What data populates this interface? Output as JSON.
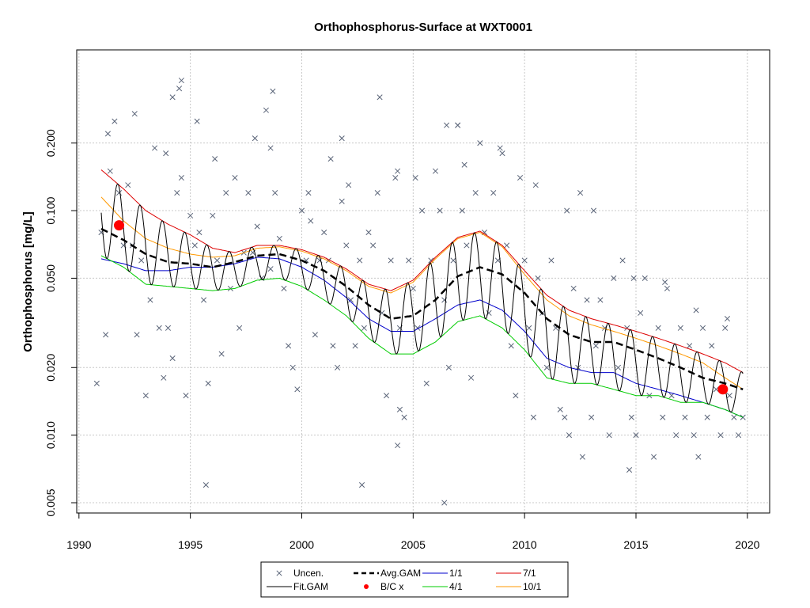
{
  "chart_data": {
    "type": "line",
    "title": "Orthophosphorus-Surface at WXT0001",
    "xlabel": "",
    "ylabel": "Orthophosphorus [mg/L]",
    "x_scale": "linear",
    "y_scale": "log",
    "xlim": [
      1989.9,
      2021.0
    ],
    "ylim": [
      0.0045,
      0.52
    ],
    "x_ticks": [
      1990,
      1995,
      2000,
      2005,
      2010,
      2015,
      2020
    ],
    "x_tick_labels": [
      "1990",
      "1995",
      "2000",
      "2005",
      "2010",
      "2015",
      "2020"
    ],
    "y_ticks": [
      0.005,
      0.01,
      0.02,
      0.05,
      0.1,
      0.2
    ],
    "y_tick_labels": [
      "0.005",
      "0.010",
      "0.020",
      "0.050",
      "0.100",
      "0.200"
    ],
    "grid": true,
    "legend_position": "bottom-center",
    "legend": [
      {
        "label": "Uncen.",
        "symbol": "cross",
        "color": "#5a6478"
      },
      {
        "label": "Fit.GAM",
        "symbol": "line",
        "color": "#000000"
      },
      {
        "label": "Avg.GAM",
        "symbol": "dashed",
        "color": "#000000"
      },
      {
        "label": "B/C x",
        "symbol": "dot",
        "color": "#ff0000"
      },
      {
        "label": "1/1",
        "symbol": "line",
        "color": "#0000cc"
      },
      {
        "label": "4/1",
        "symbol": "line",
        "color": "#00cc00"
      },
      {
        "label": "7/1",
        "symbol": "line",
        "color": "#dd0000"
      },
      {
        "label": "10/1",
        "symbol": "line",
        "color": "#ff9900"
      }
    ],
    "series": [
      {
        "key": "avg",
        "color": "#000000",
        "x": [
          1991.0,
          1992.0,
          1993.0,
          1994.0,
          1995.0,
          1996.0,
          1997.0,
          1998.0,
          1999.0,
          2000.0,
          2001.0,
          2002.0,
          2003.0,
          2004.0,
          2005.0,
          2006.0,
          2007.0,
          2008.0,
          2009.0,
          2010.0,
          2011.0,
          2012.0,
          2013.0,
          2014.0,
          2015.0,
          2016.0,
          2017.0,
          2018.0,
          2019.0,
          2019.8
        ],
        "y": [
          0.083,
          0.074,
          0.064,
          0.059,
          0.058,
          0.056,
          0.059,
          0.063,
          0.064,
          0.06,
          0.054,
          0.046,
          0.038,
          0.033,
          0.034,
          0.04,
          0.051,
          0.056,
          0.052,
          0.043,
          0.033,
          0.028,
          0.026,
          0.026,
          0.024,
          0.022,
          0.02,
          0.018,
          0.017,
          0.016
        ]
      },
      {
        "key": "m1",
        "color": "#0000cc",
        "x": [
          1991.0,
          1992.0,
          1993.0,
          1994.0,
          1995.0,
          1996.0,
          1997.0,
          1998.0,
          1999.0,
          2000.0,
          2001.0,
          2002.0,
          2003.0,
          2004.0,
          2005.0,
          2006.0,
          2007.0,
          2008.0,
          2009.0,
          2010.0,
          2011.0,
          2012.0,
          2013.0,
          2014.0,
          2015.0,
          2016.0,
          2017.0,
          2018.0,
          2019.0,
          2019.8
        ],
        "y": [
          0.061,
          0.058,
          0.054,
          0.054,
          0.056,
          0.056,
          0.058,
          0.062,
          0.061,
          0.056,
          0.049,
          0.041,
          0.033,
          0.029,
          0.029,
          0.033,
          0.038,
          0.04,
          0.036,
          0.029,
          0.022,
          0.02,
          0.019,
          0.019,
          0.017,
          0.016,
          0.015,
          0.014,
          0.013,
          0.012
        ]
      },
      {
        "key": "m4",
        "color": "#00cc00",
        "x": [
          1991.0,
          1992.0,
          1993.0,
          1994.0,
          1995.0,
          1996.0,
          1997.0,
          1998.0,
          1999.0,
          2000.0,
          2001.0,
          2002.0,
          2003.0,
          2004.0,
          2005.0,
          2006.0,
          2007.0,
          2008.0,
          2009.0,
          2010.0,
          2011.0,
          2012.0,
          2013.0,
          2014.0,
          2015.0,
          2016.0,
          2017.0,
          2018.0,
          2019.0,
          2019.8
        ],
        "y": [
          0.063,
          0.056,
          0.047,
          0.046,
          0.045,
          0.044,
          0.045,
          0.049,
          0.05,
          0.046,
          0.04,
          0.034,
          0.027,
          0.023,
          0.023,
          0.026,
          0.032,
          0.034,
          0.03,
          0.024,
          0.018,
          0.017,
          0.017,
          0.016,
          0.015,
          0.015,
          0.014,
          0.014,
          0.013,
          0.012
        ]
      },
      {
        "key": "m7",
        "color": "#dd0000",
        "x": [
          1991.0,
          1992.0,
          1993.0,
          1994.0,
          1995.0,
          1996.0,
          1997.0,
          1998.0,
          1999.0,
          2000.0,
          2001.0,
          2002.0,
          2003.0,
          2004.0,
          2005.0,
          2006.0,
          2007.0,
          2008.0,
          2009.0,
          2010.0,
          2011.0,
          2012.0,
          2013.0,
          2014.0,
          2015.0,
          2016.0,
          2017.0,
          2018.0,
          2019.0,
          2019.8
        ],
        "y": [
          0.152,
          0.125,
          0.1,
          0.087,
          0.078,
          0.068,
          0.065,
          0.07,
          0.07,
          0.067,
          0.062,
          0.055,
          0.047,
          0.044,
          0.049,
          0.062,
          0.076,
          0.081,
          0.07,
          0.054,
          0.042,
          0.036,
          0.033,
          0.031,
          0.029,
          0.027,
          0.025,
          0.023,
          0.021,
          0.019
        ]
      },
      {
        "key": "m10",
        "color": "#ff9900",
        "x": [
          1991.0,
          1992.0,
          1993.0,
          1994.0,
          1995.0,
          1996.0,
          1997.0,
          1998.0,
          1999.0,
          2000.0,
          2001.0,
          2002.0,
          2003.0,
          2004.0,
          2005.0,
          2006.0,
          2007.0,
          2008.0,
          2009.0,
          2010.0,
          2011.0,
          2012.0,
          2013.0,
          2014.0,
          2015.0,
          2016.0,
          2017.0,
          2018.0,
          2019.0,
          2019.8
        ],
        "y": [
          0.115,
          0.09,
          0.075,
          0.068,
          0.064,
          0.062,
          0.063,
          0.068,
          0.069,
          0.066,
          0.061,
          0.054,
          0.046,
          0.043,
          0.048,
          0.061,
          0.075,
          0.08,
          0.069,
          0.052,
          0.04,
          0.034,
          0.031,
          0.029,
          0.027,
          0.025,
          0.023,
          0.021,
          0.018,
          0.016
        ]
      }
    ],
    "fit_gam": {
      "key": "fit",
      "color": "#000000",
      "period_years": 1.0
    },
    "bc_points": [
      {
        "x": 1991.8,
        "y": 0.086
      },
      {
        "x": 2018.9,
        "y": 0.016
      }
    ],
    "observations": {
      "x": [
        1990.8,
        1991.0,
        1991.2,
        1991.4,
        1991.6,
        1991.8,
        1992.0,
        1992.2,
        1992.4,
        1992.6,
        1992.8,
        1993.0,
        1993.2,
        1993.4,
        1993.6,
        1993.8,
        1994.0,
        1994.2,
        1994.4,
        1994.6,
        1994.8,
        1995.0,
        1995.2,
        1995.4,
        1995.6,
        1995.8,
        1996.0,
        1996.2,
        1996.4,
        1996.6,
        1996.8,
        1997.0,
        1997.2,
        1997.4,
        1997.6,
        1997.8,
        1998.0,
        1998.2,
        1998.4,
        1998.6,
        1998.8,
        1999.0,
        1999.2,
        1999.4,
        1999.6,
        1999.8,
        2000.0,
        2000.2,
        2000.4,
        2000.6,
        2000.8,
        2001.0,
        2001.2,
        2001.4,
        2001.6,
        2001.8,
        2002.0,
        2002.2,
        2002.4,
        2002.6,
        2002.8,
        2003.0,
        2003.2,
        2003.4,
        2003.6,
        2003.8,
        2004.0,
        2004.2,
        2004.4,
        2004.6,
        2004.8,
        2005.0,
        2005.2,
        2005.4,
        2005.6,
        2005.8,
        2006.0,
        2006.2,
        2006.4,
        2006.6,
        2006.8,
        2007.0,
        2007.2,
        2007.4,
        2007.6,
        2007.8,
        2008.0,
        2008.2,
        2008.4,
        2008.6,
        2008.8,
        2009.0,
        2009.2,
        2009.4,
        2009.6,
        2009.8,
        2010.0,
        2010.2,
        2010.4,
        2010.6,
        2010.8,
        2011.0,
        2011.2,
        2011.4,
        2011.6,
        2011.8,
        2012.0,
        2012.2,
        2012.4,
        2012.6,
        2012.8,
        2013.0,
        2013.2,
        2013.4,
        2013.6,
        2013.8,
        2014.0,
        2014.2,
        2014.4,
        2014.6,
        2014.8,
        2015.0,
        2015.2,
        2015.4,
        2015.6,
        2015.8,
        2016.0,
        2016.2,
        2016.4,
        2016.6,
        2016.8,
        2017.0,
        2017.2,
        2017.4,
        2017.6,
        2017.8,
        2018.0,
        2018.2,
        2018.4,
        2018.6,
        2018.8,
        2019.0,
        2019.2,
        2019.4,
        2019.6,
        2019.8,
        1991.3,
        1992.5,
        1993.9,
        1994.5,
        1995.3,
        1996.1,
        1997.9,
        1998.7,
        2000.3,
        2001.3,
        2002.1,
        2003.5,
        2004.3,
        2005.1,
        2006.5,
        2007.3,
        2008.9,
        2010.5,
        2011.9,
        2013.1,
        2014.9,
        2016.3,
        2017.7,
        2019.1,
        1994.2,
        1994.6,
        1998.6,
        2002.7,
        2004.4,
        2006.4,
        2007.0,
        2001.8,
        1995.7,
        2014.7,
        2004.3,
        2012.5
      ],
      "y": [
        0.017,
        0.08,
        0.028,
        0.15,
        0.25,
        0.12,
        0.07,
        0.13,
        0.07,
        0.028,
        0.06,
        0.015,
        0.04,
        0.19,
        0.03,
        0.018,
        0.03,
        0.022,
        0.12,
        0.14,
        0.015,
        0.095,
        0.07,
        0.08,
        0.04,
        0.017,
        0.095,
        0.06,
        0.023,
        0.12,
        0.045,
        0.14,
        0.03,
        0.065,
        0.12,
        0.065,
        0.085,
        0.05,
        0.28,
        0.055,
        0.12,
        0.075,
        0.045,
        0.025,
        0.02,
        0.016,
        0.1,
        0.06,
        0.09,
        0.028,
        0.06,
        0.08,
        0.06,
        0.025,
        0.02,
        0.11,
        0.07,
        0.04,
        0.025,
        0.06,
        0.03,
        0.08,
        0.07,
        0.12,
        0.035,
        0.015,
        0.06,
        0.14,
        0.03,
        0.012,
        0.06,
        0.045,
        0.03,
        0.1,
        0.017,
        0.06,
        0.15,
        0.1,
        0.04,
        0.02,
        0.06,
        0.24,
        0.1,
        0.07,
        0.018,
        0.12,
        0.2,
        0.08,
        0.035,
        0.12,
        0.06,
        0.18,
        0.07,
        0.025,
        0.015,
        0.14,
        0.06,
        0.03,
        0.012,
        0.05,
        0.035,
        0.02,
        0.06,
        0.03,
        0.013,
        0.012,
        0.01,
        0.045,
        0.02,
        0.008,
        0.04,
        0.012,
        0.025,
        0.04,
        0.03,
        0.01,
        0.05,
        0.02,
        0.06,
        0.03,
        0.012,
        0.01,
        0.035,
        0.05,
        0.015,
        0.008,
        0.03,
        0.012,
        0.045,
        0.015,
        0.01,
        0.03,
        0.012,
        0.025,
        0.01,
        0.008,
        0.03,
        0.012,
        0.025,
        0.016,
        0.01,
        0.03,
        0.015,
        0.012,
        0.01,
        0.012,
        0.22,
        0.27,
        0.18,
        0.35,
        0.25,
        0.17,
        0.21,
        0.34,
        0.12,
        0.17,
        0.13,
        0.32,
        0.15,
        0.14,
        0.24,
        0.16,
        0.19,
        0.13,
        0.1,
        0.1,
        0.05,
        0.048,
        0.036,
        0.033,
        0.32,
        0.38,
        0.19,
        0.006,
        0.013,
        0.005,
        0.24,
        0.21,
        0.006,
        0.007,
        0.009,
        0.12
      ]
    }
  }
}
